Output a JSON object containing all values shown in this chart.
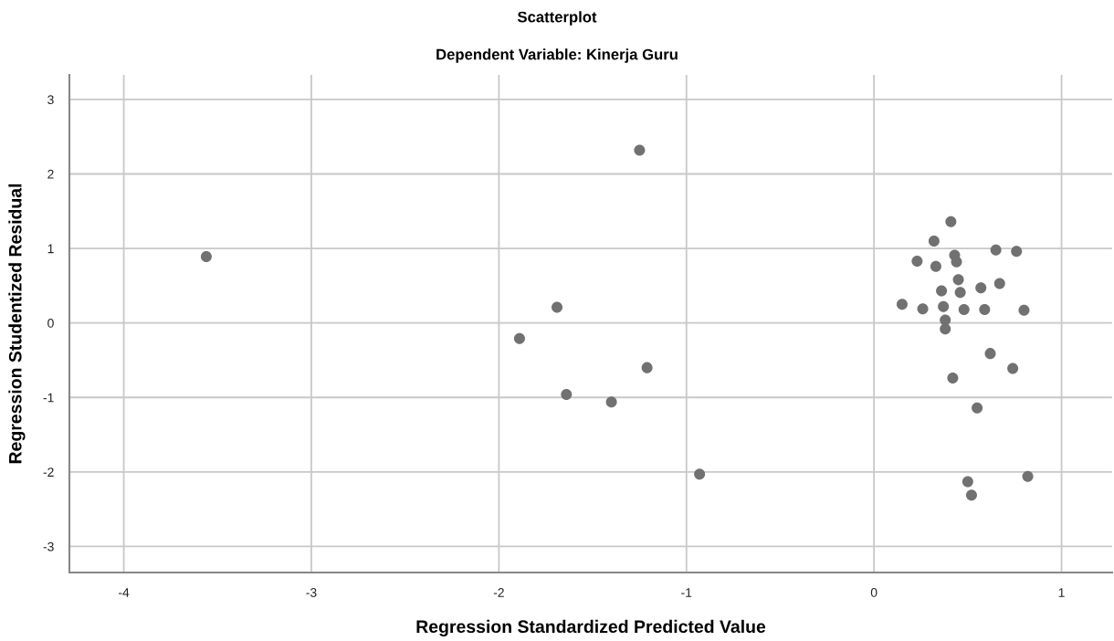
{
  "chart_data": {
    "type": "scatter",
    "title": "Scatterplot",
    "subtitle": "Dependent Variable: Kinerja Guru",
    "xlabel": "Regression Standardized Predicted Value",
    "ylabel": "Regression Studentized Residual",
    "x": [
      0.41,
      0.32,
      0.65,
      0.76,
      0.43,
      0.44,
      0.23,
      0.33,
      0.45,
      0.67,
      0.57,
      0.36,
      0.46,
      0.15,
      0.26,
      0.37,
      0.48,
      0.59,
      0.8,
      0.38,
      0.38,
      0.62,
      0.74,
      0.42,
      0.55,
      0.5,
      0.52,
      0.82,
      -1.25,
      -1.69,
      -1.89,
      -1.21,
      -1.64,
      -1.4,
      -0.93,
      -3.56
    ],
    "values": [
      1.36,
      1.1,
      0.98,
      0.96,
      0.91,
      0.82,
      0.83,
      0.76,
      0.58,
      0.53,
      0.47,
      0.43,
      0.41,
      0.25,
      0.19,
      0.22,
      0.18,
      0.18,
      0.17,
      0.04,
      -0.08,
      -0.41,
      -0.61,
      -0.74,
      -1.14,
      -2.13,
      -2.31,
      -2.06,
      2.32,
      0.21,
      -0.21,
      -0.6,
      -0.96,
      -1.06,
      -2.03,
      0.89
    ],
    "color": "#717171",
    "marker": "circle",
    "grid": true,
    "legend": false,
    "xlim": [
      -4.29,
      1.27
    ],
    "xticks": [
      -4,
      -3,
      -2,
      -1,
      0,
      1
    ],
    "ylim": [
      -3.35,
      3.33
    ],
    "yticks": [
      -3,
      -2,
      -1,
      0,
      1,
      2,
      3
    ]
  }
}
